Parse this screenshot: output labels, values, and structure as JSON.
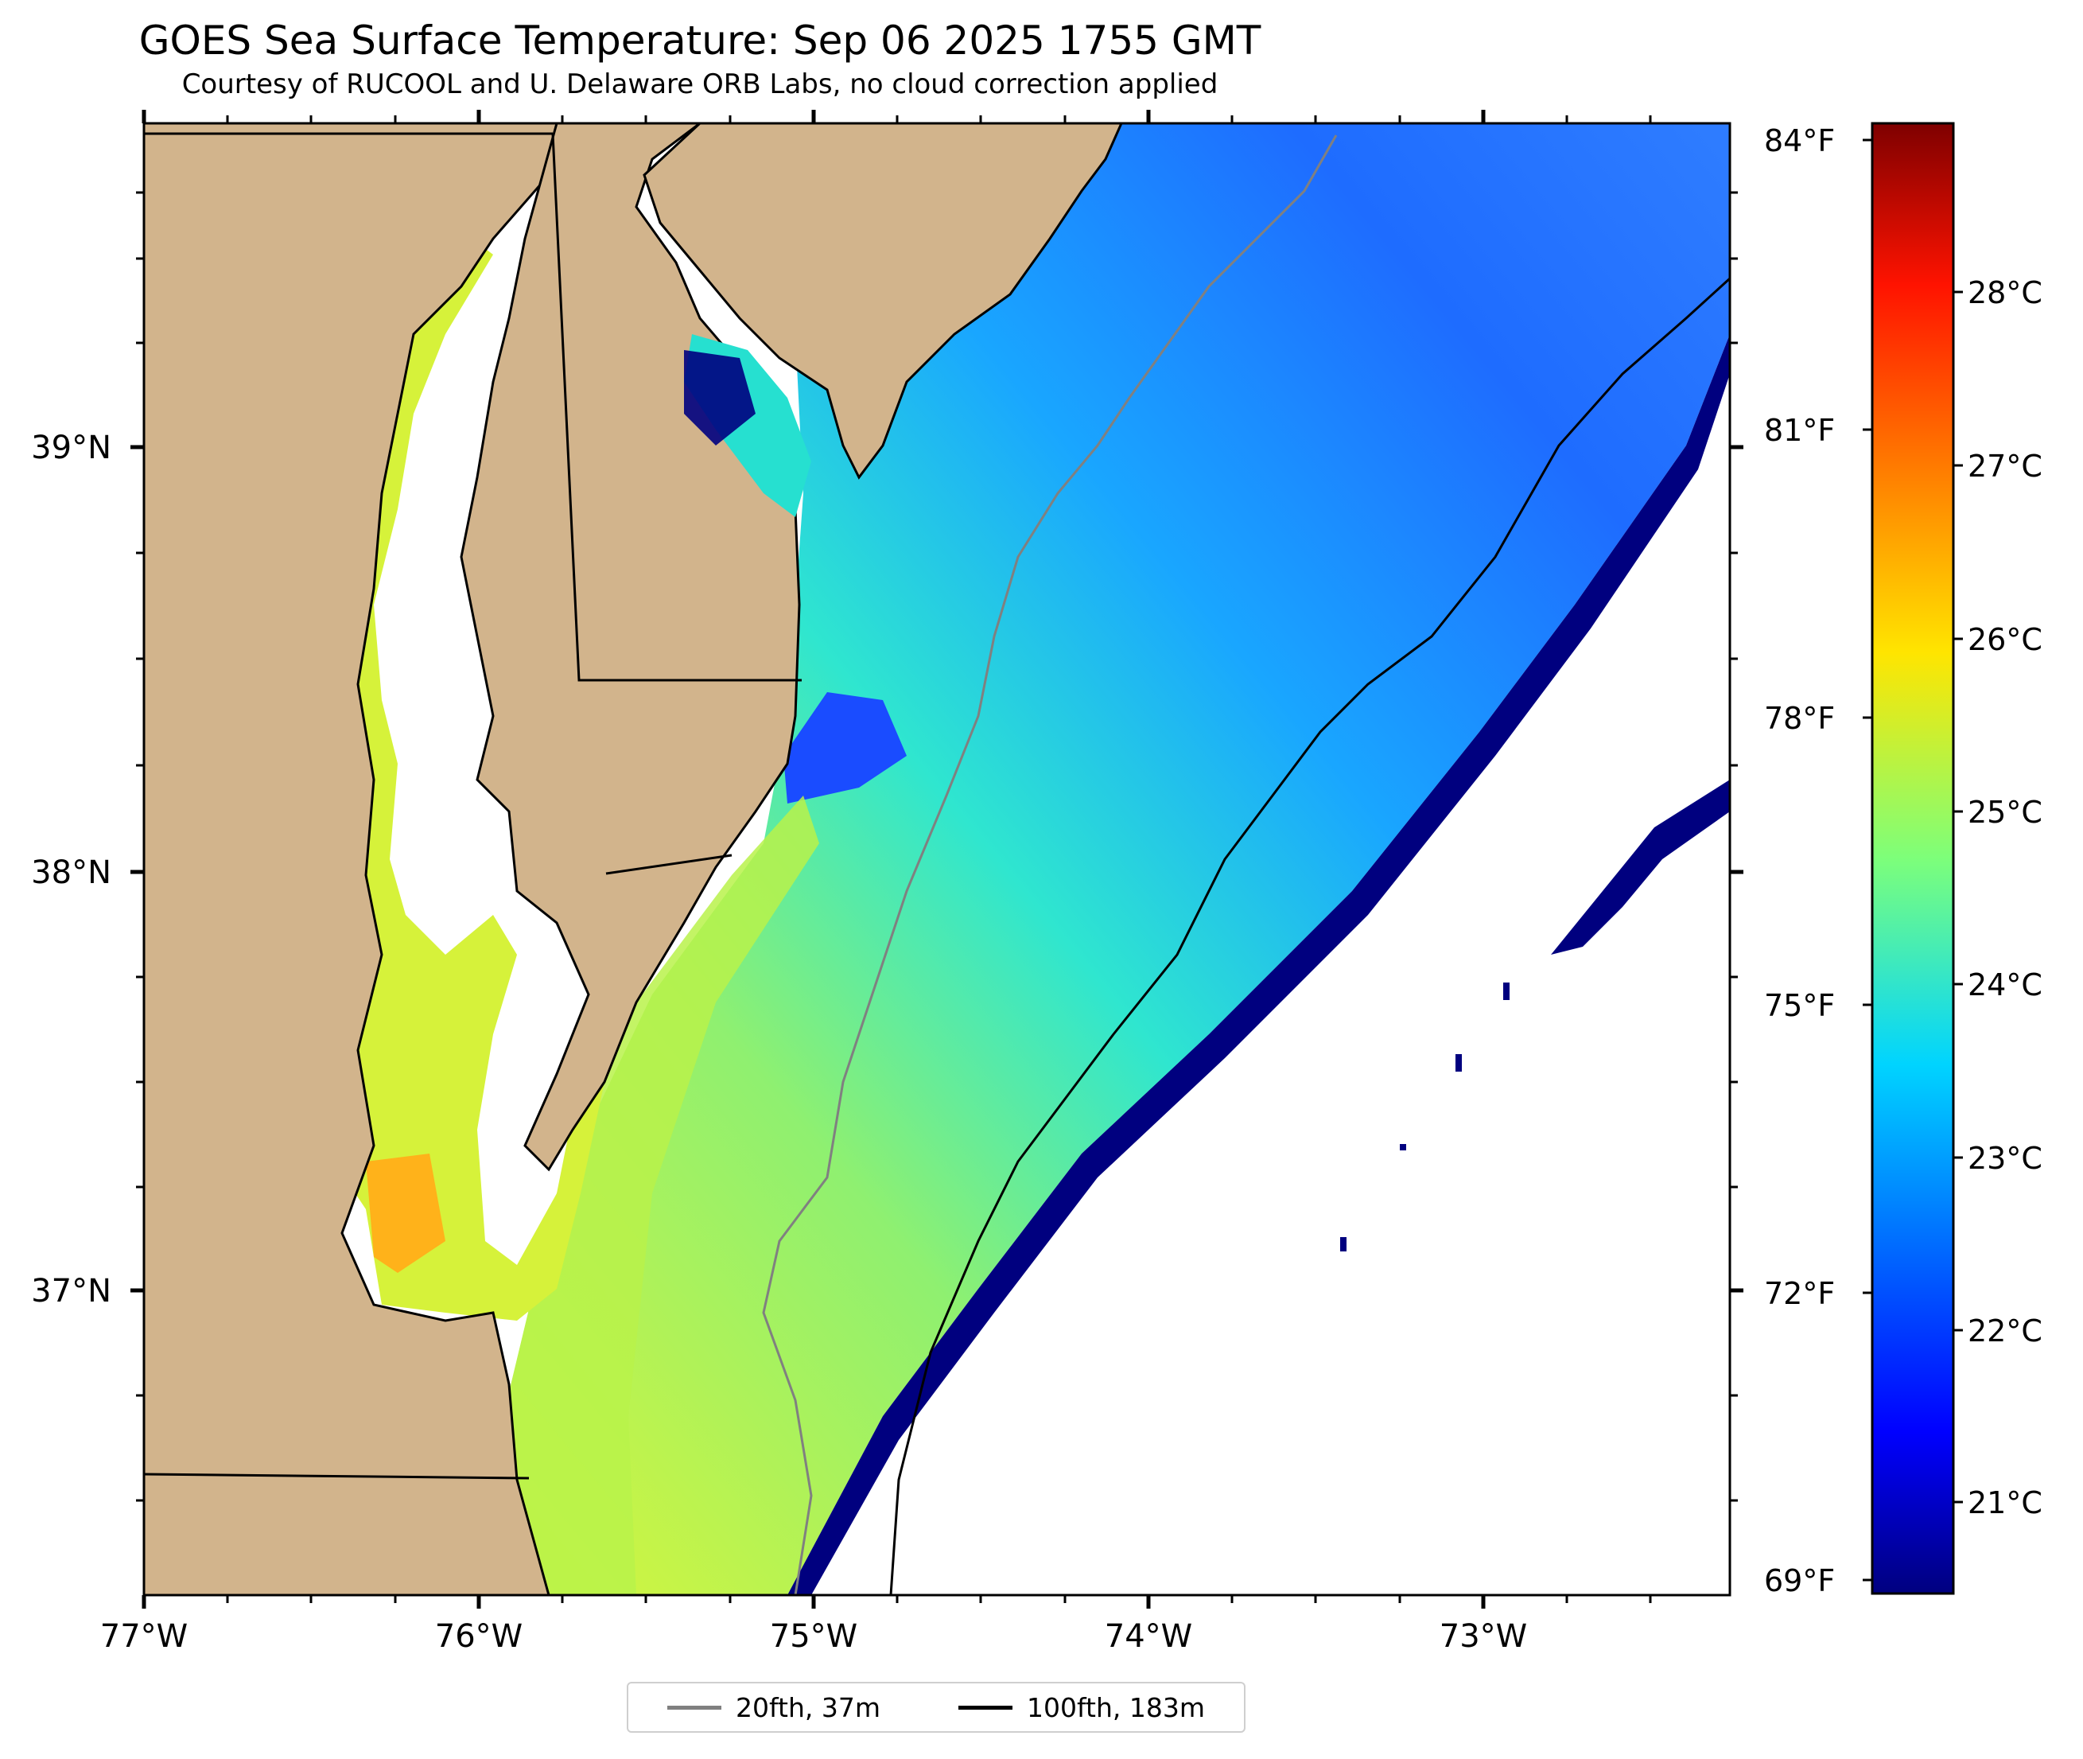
{
  "title": "GOES Sea Surface Temperature: Sep 06 2025 1755 GMT",
  "subtitle": "Courtesy of RUCOOL and U. Delaware ORB Labs, no cloud correction applied",
  "x_ticks": [
    "77°W",
    "76°W",
    "75°W",
    "74°W",
    "73°W"
  ],
  "y_ticks": [
    "39°N",
    "38°N",
    "37°N"
  ],
  "colorbar": {
    "celsius_ticks": [
      "28°C",
      "27°C",
      "26°C",
      "25°C",
      "24°C",
      "23°C",
      "22°C",
      "21°C"
    ],
    "fahrenheit_ticks": [
      "84°F",
      "81°F",
      "78°F",
      "75°F",
      "72°F",
      "69°F"
    ],
    "colormap": "jet",
    "range_c": [
      20.5,
      28.9
    ]
  },
  "legend": {
    "items": [
      {
        "label": "20fth, 37m",
        "color": "#808080"
      },
      {
        "label": "100fth, 183m",
        "color": "#000000"
      }
    ]
  },
  "colors": {
    "land": "#d2b48c",
    "no_data": "#ffffff",
    "deep_ocean": "#1a5cff",
    "shelf": "#2ee8c8",
    "coastal": "#a8f04a",
    "bay_warm": "#e6f23c",
    "hot": "#ff9a10",
    "cloud_edge": "#00007f"
  }
}
